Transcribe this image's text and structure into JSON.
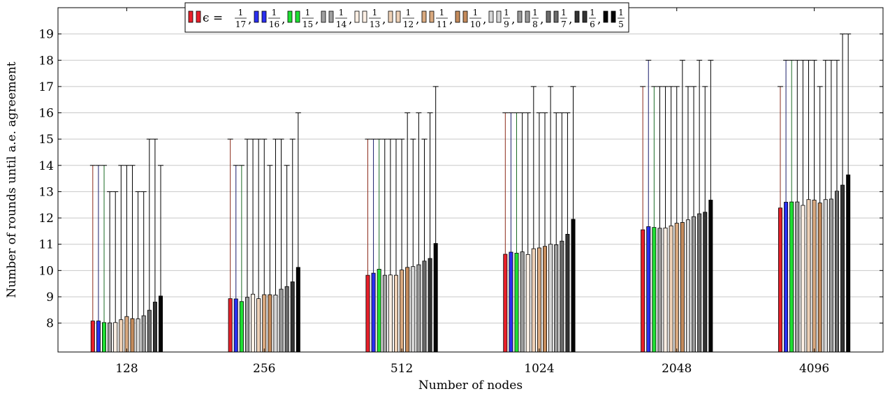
{
  "chart_data": {
    "type": "bar",
    "xlabel": "Number of nodes",
    "ylabel": "Number of rounds until a.e. agreement",
    "categories": [
      "128",
      "256",
      "512",
      "1024",
      "2048",
      "4096"
    ],
    "ylim": [
      6.9,
      20.0
    ],
    "yticks": [
      8,
      9,
      10,
      11,
      12,
      13,
      14,
      15,
      16,
      17,
      18,
      19
    ],
    "grid": true,
    "legend_position": "top",
    "legend_prefix": "ϵ =",
    "series": [
      {
        "name": "1/17",
        "num": "1",
        "den": "17",
        "color": "#e8202a",
        "values": [
          8.08,
          8.93,
          9.82,
          10.62,
          11.55,
          12.38
        ],
        "max": [
          14,
          15,
          15,
          16,
          17,
          17
        ]
      },
      {
        "name": "1/16",
        "num": "1",
        "den": "16",
        "color": "#2a2ff0",
        "values": [
          8.08,
          8.92,
          9.9,
          10.7,
          11.67,
          12.6
        ],
        "max": [
          14,
          14,
          15,
          16,
          18,
          18
        ]
      },
      {
        "name": "1/15",
        "num": "1",
        "den": "15",
        "color": "#1fdf33",
        "values": [
          8.02,
          8.82,
          10.05,
          10.66,
          11.64,
          12.61
        ],
        "max": [
          14,
          14,
          15,
          16,
          17,
          18
        ]
      },
      {
        "name": "1/14",
        "num": "1",
        "den": "14",
        "color": "#a0a0a0",
        "values": [
          8.01,
          8.98,
          9.82,
          10.71,
          11.61,
          12.61
        ],
        "max": [
          13,
          15,
          15,
          16,
          17,
          18
        ]
      },
      {
        "name": "1/13",
        "num": "1",
        "den": "13",
        "color": "#fcefe4",
        "values": [
          8.02,
          9.1,
          9.83,
          10.61,
          11.62,
          12.48
        ],
        "max": [
          13,
          15,
          15,
          16,
          17,
          18
        ]
      },
      {
        "name": "1/12",
        "num": "1",
        "den": "12",
        "color": "#eed1b7",
        "values": [
          8.13,
          8.93,
          9.82,
          10.83,
          11.7,
          12.7
        ],
        "max": [
          14,
          15,
          15,
          17,
          17,
          18
        ]
      },
      {
        "name": "1/11",
        "num": "1",
        "den": "11",
        "color": "#d9a97f",
        "values": [
          8.25,
          9.08,
          10.02,
          10.86,
          11.8,
          12.68
        ],
        "max": [
          14,
          15,
          15,
          16,
          17,
          18
        ]
      },
      {
        "name": "1/10",
        "num": "1",
        "den": "10",
        "color": "#c48b5c",
        "values": [
          8.17,
          9.08,
          10.12,
          10.92,
          11.83,
          12.57
        ],
        "max": [
          14,
          14,
          16,
          16,
          18,
          17
        ]
      },
      {
        "name": "1/9",
        "num": "1",
        "den": "9",
        "color": "#d6d6d6",
        "values": [
          8.16,
          9.07,
          10.15,
          11.0,
          11.93,
          12.7
        ],
        "max": [
          13,
          15,
          15,
          17,
          17,
          18
        ]
      },
      {
        "name": "1/8",
        "num": "1",
        "den": "8",
        "color": "#9a9a9a",
        "values": [
          8.28,
          9.29,
          10.22,
          10.98,
          12.05,
          12.72
        ],
        "max": [
          13,
          15,
          16,
          16,
          17,
          18
        ]
      },
      {
        "name": "1/7",
        "num": "1",
        "den": "7",
        "color": "#6b6b6b",
        "values": [
          8.49,
          9.39,
          10.36,
          11.12,
          12.16,
          13.02
        ],
        "max": [
          15,
          14,
          15,
          16,
          18,
          18
        ]
      },
      {
        "name": "1/6",
        "num": "1",
        "den": "6",
        "color": "#333333",
        "values": [
          8.8,
          9.57,
          10.46,
          11.38,
          12.22,
          13.25
        ],
        "max": [
          15,
          15,
          16,
          16,
          17,
          19
        ]
      },
      {
        "name": "1/5",
        "num": "1",
        "den": "5",
        "color": "#050505",
        "values": [
          9.03,
          10.12,
          11.03,
          11.95,
          12.68,
          13.64
        ],
        "max": [
          14,
          16,
          17,
          17,
          18,
          19
        ]
      }
    ]
  }
}
